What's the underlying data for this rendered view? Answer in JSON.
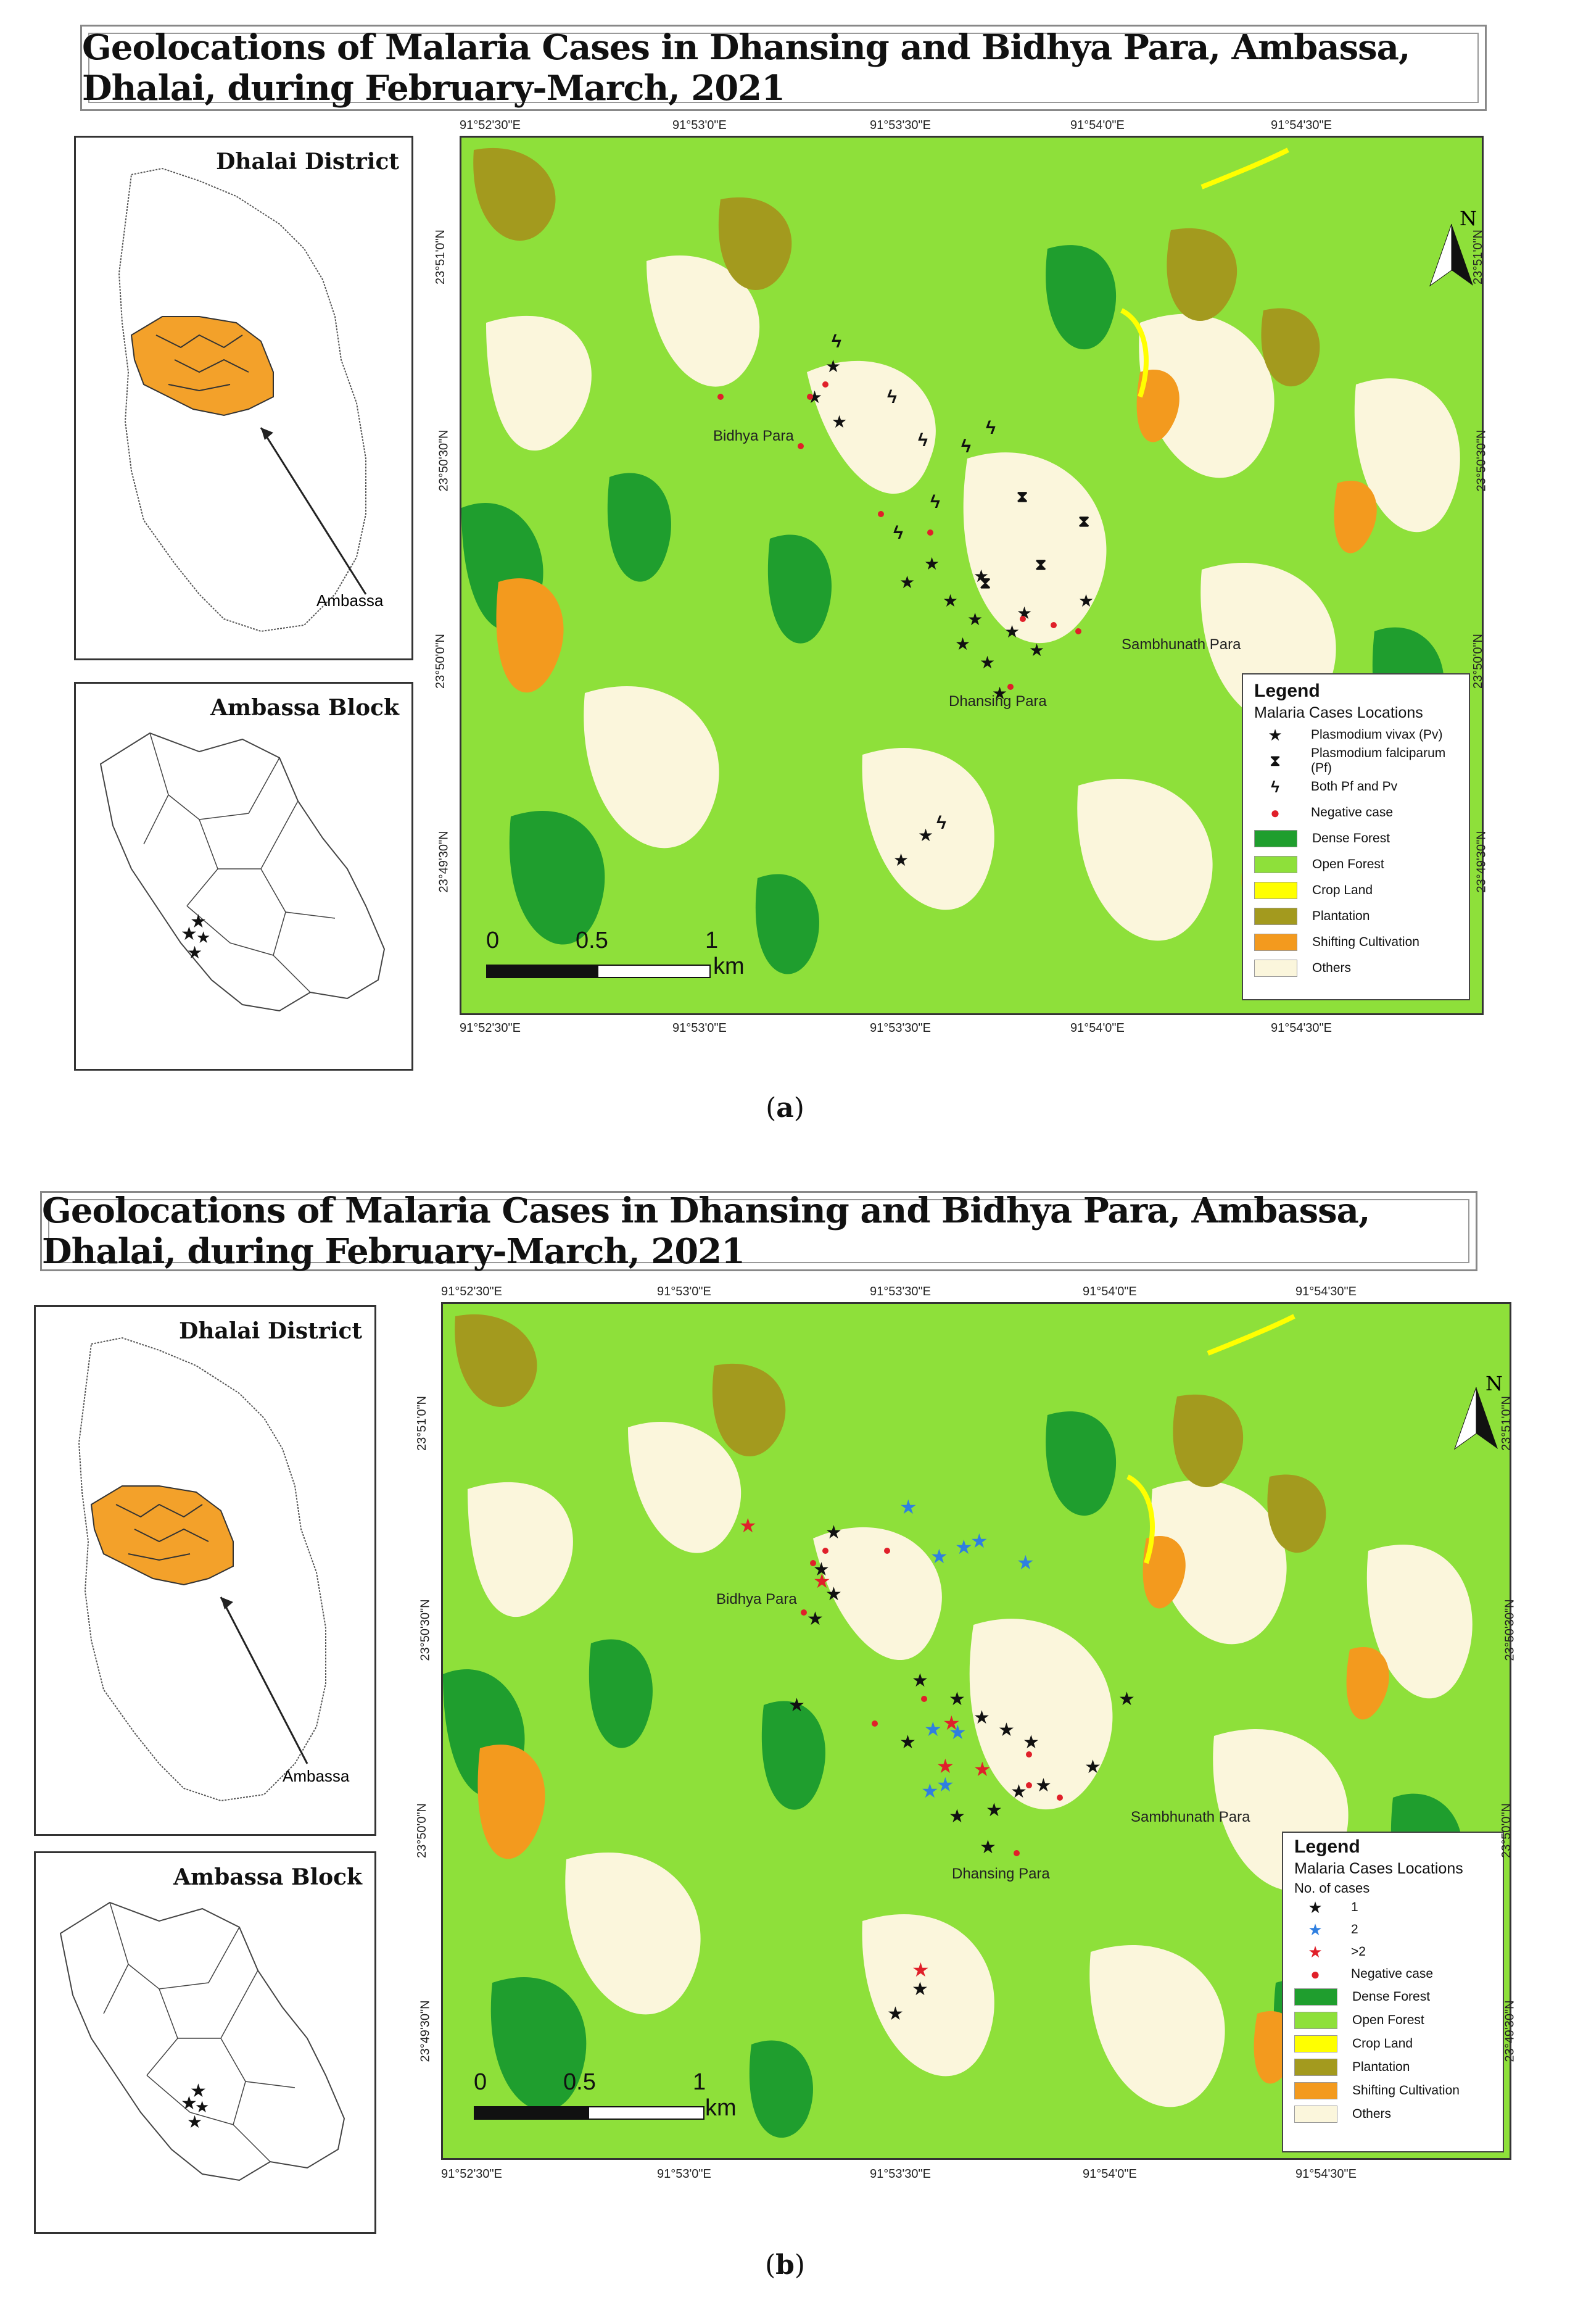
{
  "title": "Geolocations of Malaria Cases in Dhansing and Bidhya Para, Ambassa, Dhalai,  during February-March, 2021",
  "insets": {
    "district_title": "Dhalai District",
    "block_title": "Ambassa Block",
    "arrow_label": "Ambassa"
  },
  "coords": {
    "lon": [
      "91°52'30\"E",
      "91°53'0\"E",
      "91°53'30\"E",
      "91°54'0\"E",
      "91°54'30\"E"
    ],
    "lat": [
      "23°51'0\"N",
      "23°50'30\"N",
      "23°50'0\"N",
      "23°49'30\"N"
    ]
  },
  "places": {
    "bidhya": "Bidhya Para",
    "dhansing": "Dhansing Para",
    "sambhu": "Sambhunath Para"
  },
  "scale": {
    "l0": "0",
    "l1": "0.5",
    "l2": "1",
    "unit": "km"
  },
  "north": "N",
  "panel_a": {
    "caption_letter": "a",
    "legend": {
      "title": "Legend",
      "subtitle": "Malaria Cases Locations",
      "symbols": [
        "Plasmodium vivax (Pv)",
        "Plasmodium falciparum (Pf)",
        "Both Pf and Pv",
        "Negative case"
      ],
      "classes": [
        "Dense Forest",
        "Open Forest",
        "Crop Land",
        "Plantation",
        "Shifting Cultivation",
        "Others"
      ]
    }
  },
  "panel_b": {
    "caption_letter": "b",
    "legend": {
      "title": "Legend",
      "subtitle": "Malaria Cases Locations",
      "subtitle2": "No. of cases",
      "symbols": [
        "1",
        "2",
        ">2",
        "Negative case"
      ],
      "classes": [
        "Dense Forest",
        "Open Forest",
        "Crop Land",
        "Plantation",
        "Shifting Cultivation",
        "Others"
      ]
    }
  },
  "colors": {
    "dense_forest": "#1f9e2e",
    "open_forest": "#8ee03a",
    "crop_land": "#ffff00",
    "plantation": "#a39a1e",
    "shifting": "#f39a1e",
    "others": "#fbf6dc",
    "pv": "#111111",
    "two": "#2f7fe0",
    "gt2": "#e0202a",
    "negative": "#e0202a"
  }
}
